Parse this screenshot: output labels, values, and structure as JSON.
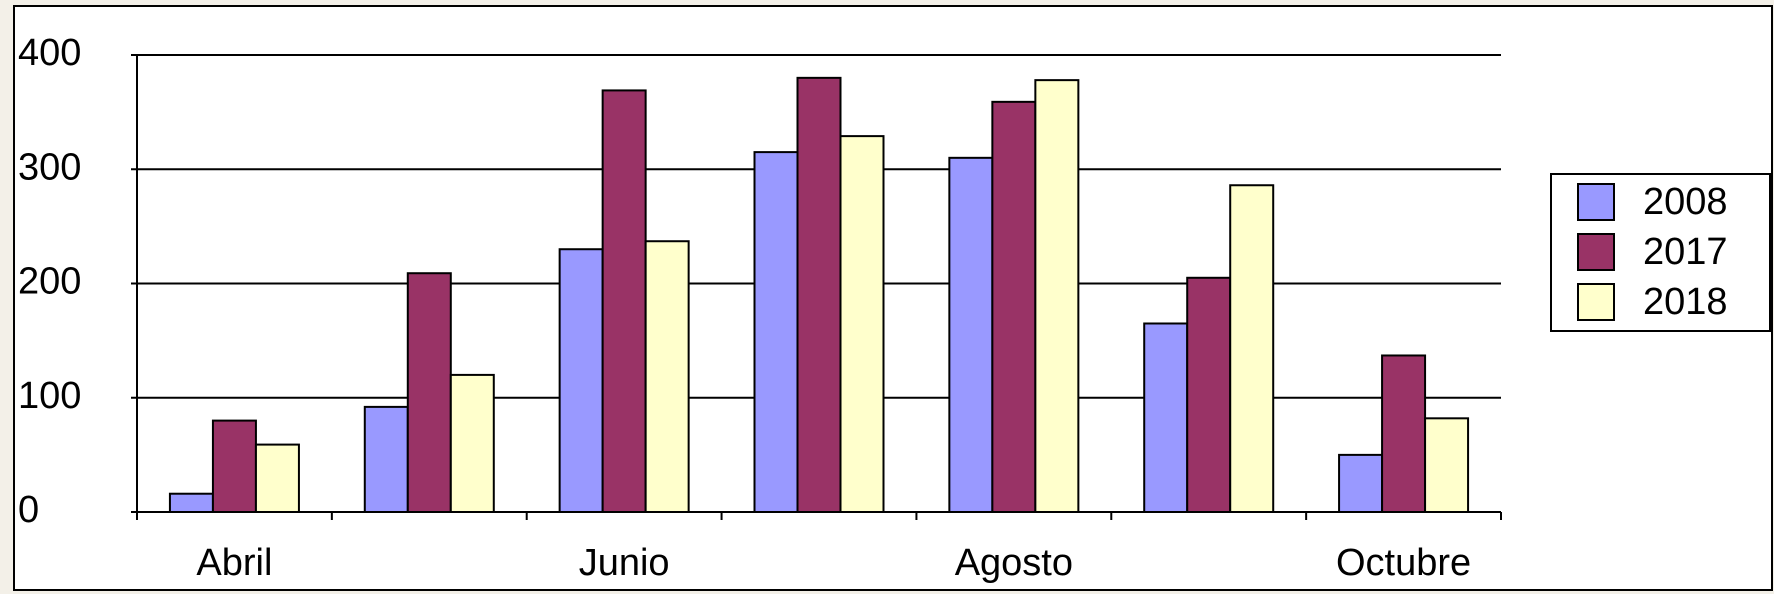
{
  "chart_data": {
    "type": "bar",
    "categories": [
      "Abril",
      null,
      "Junio",
      null,
      "Agosto",
      null,
      "Octubre"
    ],
    "series": [
      {
        "name": "2008",
        "color": "#9999ff",
        "values": [
          16,
          92,
          230,
          315,
          310,
          165,
          50
        ]
      },
      {
        "name": "2017",
        "color": "#993366",
        "values": [
          80,
          209,
          369,
          380,
          359,
          205,
          137
        ]
      },
      {
        "name": "2018",
        "color": "#ffffcc",
        "values": [
          59,
          120,
          237,
          329,
          378,
          286,
          82
        ]
      }
    ],
    "ylim": [
      0,
      400
    ],
    "yticks": [
      0,
      100,
      200,
      300,
      400
    ],
    "grid": true,
    "legend": "right"
  }
}
